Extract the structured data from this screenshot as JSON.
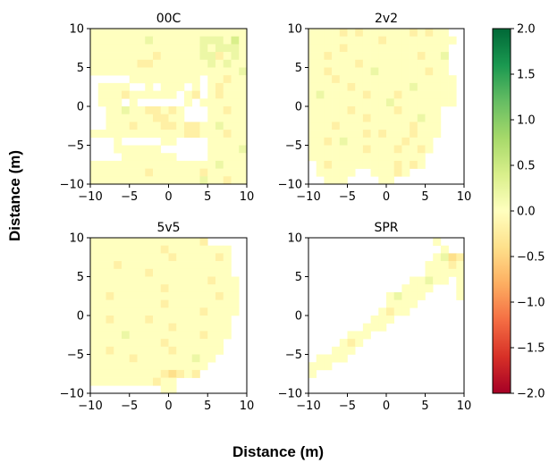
{
  "chart_data": {
    "type": "heatmap",
    "xlabel": "Distance (m)",
    "ylabel": "Distance (m)",
    "xlim": [
      -10,
      10
    ],
    "ylim": [
      -10,
      10
    ],
    "xticks": [
      -10,
      -5,
      0,
      5,
      10
    ],
    "yticks": [
      -10,
      -5,
      0,
      5,
      10
    ],
    "colorbar": {
      "colormap": "RdYlGn",
      "range": [
        -2.0,
        2.0
      ],
      "ticks": [
        "2.0",
        "1.5",
        "1.0",
        "0.5",
        "0.0",
        "−0.5",
        "−1.0",
        "−1.5",
        "−2.0"
      ],
      "colors": [
        "#a50026",
        "#d73027",
        "#f46d43",
        "#fdae61",
        "#fee08b",
        "#ffffbf",
        "#d9ef8b",
        "#a6d96a",
        "#66bd63",
        "#1a9850",
        "#006837"
      ]
    },
    "panels": [
      {
        "title": "00C",
        "cell_size_m": 1,
        "rows_top_to_bottom": [
          "....................",
          ".......+......+++.0.",
          "..............+.+++.",
          "........-.....++-.+.",
          "......--.......+.+..",
          "...................+",
          "XXXXX.........X..-..",
          "X....XX.X...X.X.-...",
          "X...-......X.-X.-...",
          "X...X.XXXXXX.X......",
          "XX..+..--.-.XXX..-..",
          "XX......--..XXX.....",
          "XX...-...--.--..+...",
          "............--...-..",
          "XXX.XXXXX..XXXX.....",
          "XXX......XXXXXX....+",
          "XXXX.......XXXX.....",
          "................+...",
          ".......-......-.....",
          "..............+..-.."
        ]
      },
      {
        "title": "2v2",
        "cell_size_m": 1,
        "rows_top_to_bottom": [
          "....-.-......-.-..XX",
          ".........-.........X",
          "....-.............XX",
          "..-...........-..+XX",
          "......-...........XX",
          "..-.....+......-..XX",
          "...-...............X",
          ".....-.......+.....X",
          ".+.....-...-.......X",
          "..........+........X",
          ".....-.....-.....XXX",
          ".......-......+..XXX",
          "...-.........-...XXX",
          ".......-.-...-...XXX",
          "..-.+.......-...XXXX",
          ".......-...-..-.XXXX",
          "...............XXXXX",
          "X.-........-.-.XXXXX",
          "X.....XX...-.XXXXXXX",
          "XX...XXXX..XXXXXXXXX"
        ]
      },
      {
        "title": "5v5",
        "cell_size_m": 1,
        "rows_top_to_bottom": [
          "..............-XXXXX",
          ".........-........XX",
          "..........-.....-.XX",
          "...-..............XX",
          ".......-..........XX",
          "...............-...X",
          ".........-.........X",
          "..-.............-..X",
          ".........-.........X",
          "..............-....X",
          "..-....-..........XX",
          "..........-.......XX",
          "....+.........-...XX",
          ".........-.......XXX",
          "..-.......-......XXX",
          ".....-.......+..XXXX",
          "...............XXXXX",
          ".........-=-.-XXXXXX",
          "........-..XXXXXXXXX",
          "XXXXXXXXX..XXXXXXXXX"
        ]
      },
      {
        "title": "SPR",
        "cell_size_m": 1,
        "rows_top_to_bottom": [
          "XXXXXXXXXXXXXXXX.XXX",
          "XXXXXXXXXXXXXXXXX.XX",
          "XXXXXXXXXXXXXXXX.+=-",
          "XXXXXXXXXXXXXXX...-.",
          "XXXXXXXXXXXXXXX.....",
          "XXXXXXXXXXXXX..+..X.",
          "XXXXXXXXXXXX....XXX.",
          "XXXXXXXXXX.+...XXXX.",
          "XXXXXXXXXX....XXXXXX",
          "XXXXXXXXX.-..XXXXXXX",
          "XXXXXXXX...XXXXXXXXX",
          "XXXXXXX...XXXXXXXXXX",
          "XXXXX...XXXXXXXXXXXX",
          "XXXX.-.XXXXXXXXXXXXX",
          "XXX...XXXXXXXXXXXXXX",
          "X....XXXXXXXXXXXXXXX",
          "...XXXXXXXXXXXXXXXXX",
          ".XXXXXXXXXXXXXXXXXXX",
          "XXXXXXXXXXXXXXXXXXXX",
          "XXXXXXXXXXXXXXXXXXXX"
        ]
      }
    ],
    "cell_value_legend": {
      "X": null,
      ".": 0.0,
      "-": -0.2,
      "=": -0.4,
      "+": 0.2,
      "0": 0.4
    }
  }
}
